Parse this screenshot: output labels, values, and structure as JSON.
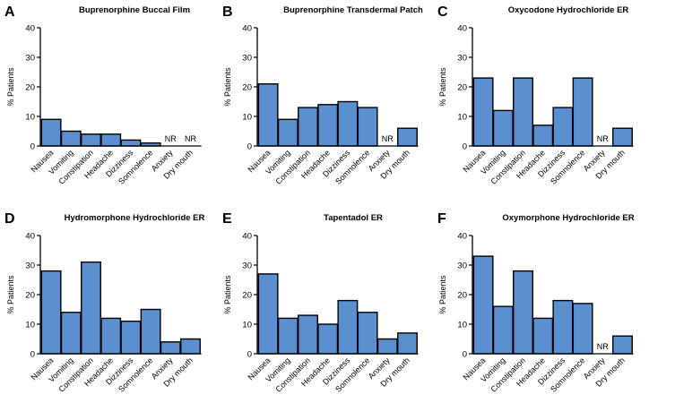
{
  "chart_data": [
    {
      "type": "bar",
      "panel": "A",
      "title": "Buprenorphine Buccal Film",
      "ylabel": "% Patients",
      "xlabel": "",
      "ylim": [
        0,
        40
      ],
      "yticks": [
        0,
        10,
        20,
        30,
        40
      ],
      "categories": [
        "Nausea",
        "Vomiting",
        "Constipation",
        "Headache",
        "Dizziness",
        "Somnolence",
        "Anxiety",
        "Dry mouth"
      ],
      "values": [
        9,
        5,
        4,
        4,
        2,
        1,
        null,
        null
      ],
      "annotations": [
        "",
        "",
        "",
        "",
        "",
        "",
        "NR",
        "NR"
      ],
      "bar_color": "#5b8fd0"
    },
    {
      "type": "bar",
      "panel": "B",
      "title": "Buprenorphine Transdermal Patch",
      "ylabel": "% Patients",
      "xlabel": "",
      "ylim": [
        0,
        40
      ],
      "yticks": [
        0,
        10,
        20,
        30,
        40
      ],
      "categories": [
        "Nausea",
        "Vomiting",
        "Constipation",
        "Headache",
        "Dizziness",
        "Somnolence",
        "Anxiety",
        "Dry mouth"
      ],
      "values": [
        21,
        9,
        13,
        14,
        15,
        13,
        null,
        6
      ],
      "annotations": [
        "",
        "",
        "",
        "",
        "",
        "",
        "NR",
        ""
      ],
      "bar_color": "#5b8fd0"
    },
    {
      "type": "bar",
      "panel": "C",
      "title": "Oxycodone Hydrochloride ER",
      "ylabel": "% Patients",
      "xlabel": "",
      "ylim": [
        0,
        40
      ],
      "yticks": [
        0,
        10,
        20,
        30,
        40
      ],
      "categories": [
        "Nausea",
        "Vomiting",
        "Constipation",
        "Headache",
        "Dizziness",
        "Somnolence",
        "Anxiety",
        "Dry mouth"
      ],
      "values": [
        23,
        12,
        23,
        7,
        13,
        23,
        null,
        6
      ],
      "annotations": [
        "",
        "",
        "",
        "",
        "",
        "",
        "NR",
        ""
      ],
      "bar_color": "#5b8fd0"
    },
    {
      "type": "bar",
      "panel": "D",
      "title": "Hydromorphone Hydrochloride ER",
      "ylabel": "% Patients",
      "xlabel": "",
      "ylim": [
        0,
        40
      ],
      "yticks": [
        0,
        10,
        20,
        30,
        40
      ],
      "categories": [
        "Nausea",
        "Vomiting",
        "Constipation",
        "Headache",
        "Dizziness",
        "Somnolence",
        "Anxiety",
        "Dry mouth"
      ],
      "values": [
        28,
        14,
        31,
        12,
        11,
        15,
        4,
        5
      ],
      "annotations": [
        "",
        "",
        "",
        "",
        "",
        "",
        "",
        ""
      ],
      "bar_color": "#5b8fd0"
    },
    {
      "type": "bar",
      "panel": "E",
      "title": "Tapentadol ER",
      "ylabel": "% Patients",
      "xlabel": "",
      "ylim": [
        0,
        40
      ],
      "yticks": [
        0,
        10,
        20,
        30,
        40
      ],
      "categories": [
        "Nausea",
        "Vomiting",
        "Constipation",
        "Headache",
        "Dizziness",
        "Somnolence",
        "Anxiety",
        "Dry mouth"
      ],
      "values": [
        27,
        12,
        13,
        10,
        18,
        14,
        5,
        7
      ],
      "annotations": [
        "",
        "",
        "",
        "",
        "",
        "",
        "",
        ""
      ],
      "bar_color": "#5b8fd0"
    },
    {
      "type": "bar",
      "panel": "F",
      "title": "Oxymorphone Hydrochloride ER",
      "ylabel": "% Patients",
      "xlabel": "",
      "ylim": [
        0,
        40
      ],
      "yticks": [
        0,
        10,
        20,
        30,
        40
      ],
      "categories": [
        "Nausea",
        "Vomiting",
        "Constipation",
        "Headache",
        "Dizziness",
        "Somnolence",
        "Anxiety",
        "Dry mouth"
      ],
      "values": [
        33,
        16,
        28,
        12,
        18,
        17,
        null,
        6
      ],
      "annotations": [
        "",
        "",
        "",
        "",
        "",
        "",
        "NR",
        ""
      ],
      "bar_color": "#5b8fd0"
    }
  ]
}
